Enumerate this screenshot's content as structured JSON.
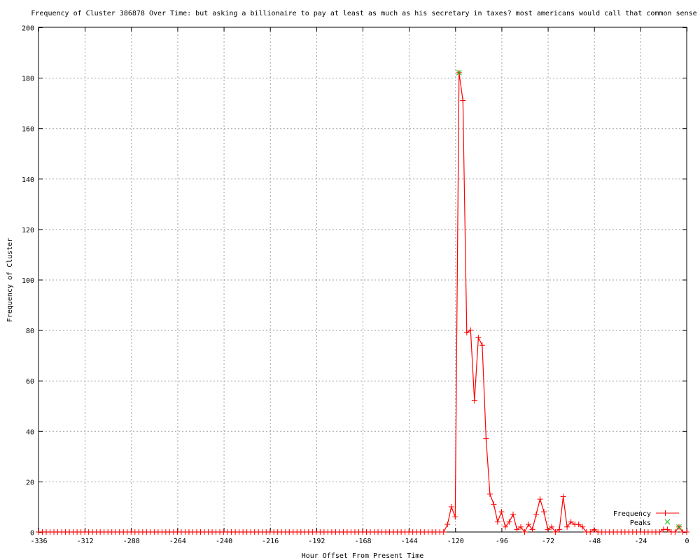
{
  "chart_data": {
    "type": "line",
    "title": "Frequency of Cluster 386878 Over Time: but asking a billionaire to pay at least as much as his secretary in taxes? most americans would call that common sense",
    "xlabel": "Hour Offset From Present Time",
    "ylabel": "Frequency of Cluster",
    "xlim": [
      -336,
      0
    ],
    "ylim": [
      0,
      200
    ],
    "xticks": [
      -336,
      -312,
      -288,
      -264,
      -240,
      -216,
      -192,
      -168,
      -144,
      -120,
      -96,
      -72,
      -48,
      -24,
      0
    ],
    "yticks": [
      0,
      20,
      40,
      60,
      80,
      100,
      120,
      140,
      160,
      180,
      200
    ],
    "grid": true,
    "legend_position": "bottom-right",
    "series": [
      {
        "name": "Frequency",
        "color": "#ff0000",
        "marker": "plus",
        "x": [
          -336,
          -334,
          -332,
          -330,
          -328,
          -326,
          -324,
          -322,
          -320,
          -318,
          -316,
          -314,
          -312,
          -310,
          -308,
          -306,
          -304,
          -302,
          -300,
          -298,
          -296,
          -294,
          -292,
          -290,
          -288,
          -286,
          -284,
          -282,
          -280,
          -278,
          -276,
          -274,
          -272,
          -270,
          -268,
          -266,
          -264,
          -262,
          -260,
          -258,
          -256,
          -254,
          -252,
          -250,
          -248,
          -246,
          -244,
          -242,
          -240,
          -238,
          -236,
          -234,
          -232,
          -230,
          -228,
          -226,
          -224,
          -222,
          -220,
          -218,
          -216,
          -214,
          -212,
          -210,
          -208,
          -206,
          -204,
          -202,
          -200,
          -198,
          -196,
          -194,
          -192,
          -190,
          -188,
          -186,
          -184,
          -182,
          -180,
          -178,
          -176,
          -174,
          -172,
          -170,
          -168,
          -166,
          -164,
          -162,
          -160,
          -158,
          -156,
          -154,
          -152,
          -150,
          -148,
          -146,
          -144,
          -142,
          -140,
          -138,
          -136,
          -134,
          -132,
          -130,
          -128,
          -126,
          -124,
          -122,
          -120,
          -118,
          -116,
          -114,
          -112,
          -110,
          -108,
          -106,
          -104,
          -102,
          -100,
          -98,
          -96,
          -94,
          -92,
          -90,
          -88,
          -86,
          -84,
          -82,
          -80,
          -78,
          -76,
          -74,
          -72,
          -70,
          -68,
          -66,
          -64,
          -62,
          -60,
          -58,
          -56,
          -54,
          -52,
          -50,
          -48,
          -46,
          -44,
          -42,
          -40,
          -38,
          -36,
          -34,
          -32,
          -30,
          -28,
          -26,
          -24,
          -22,
          -20,
          -18,
          -16,
          -14,
          -12,
          -10,
          -8,
          -6,
          -4,
          -2,
          0
        ],
        "y": [
          0,
          0,
          0,
          0,
          0,
          0,
          0,
          0,
          0,
          0,
          0,
          0,
          0,
          0,
          0,
          0,
          0,
          0,
          0,
          0,
          0,
          0,
          0,
          0,
          0,
          0,
          0,
          0,
          0,
          0,
          0,
          0,
          0,
          0,
          0,
          0,
          0,
          0,
          0,
          0,
          0,
          0,
          0,
          0,
          0,
          0,
          0,
          0,
          0,
          0,
          0,
          0,
          0,
          0,
          0,
          0,
          0,
          0,
          0,
          0,
          0,
          0,
          0,
          0,
          0,
          0,
          0,
          0,
          0,
          0,
          0,
          0,
          0,
          0,
          0,
          0,
          0,
          0,
          0,
          0,
          0,
          0,
          0,
          0,
          0,
          0,
          0,
          0,
          0,
          0,
          0,
          0,
          0,
          0,
          0,
          0,
          0,
          0,
          0,
          0,
          0,
          0,
          0,
          0,
          0,
          0,
          3,
          10,
          6,
          182,
          171,
          79,
          80,
          52,
          77,
          74,
          37,
          15,
          11,
          4,
          8,
          2,
          4,
          7,
          1,
          2,
          0,
          3,
          1,
          7,
          13,
          8,
          1,
          2,
          0,
          1,
          14,
          2,
          4,
          3,
          3,
          2,
          0,
          0,
          1,
          0,
          0,
          0,
          0,
          0,
          0,
          0,
          0,
          0,
          0,
          0,
          0,
          0,
          0,
          0,
          0,
          0,
          1,
          1,
          0,
          0,
          2,
          0,
          0
        ]
      },
      {
        "name": "Peaks",
        "color": "#00c000",
        "marker": "cross",
        "x": [
          -118,
          -4
        ],
        "y": [
          182,
          2
        ]
      }
    ]
  }
}
